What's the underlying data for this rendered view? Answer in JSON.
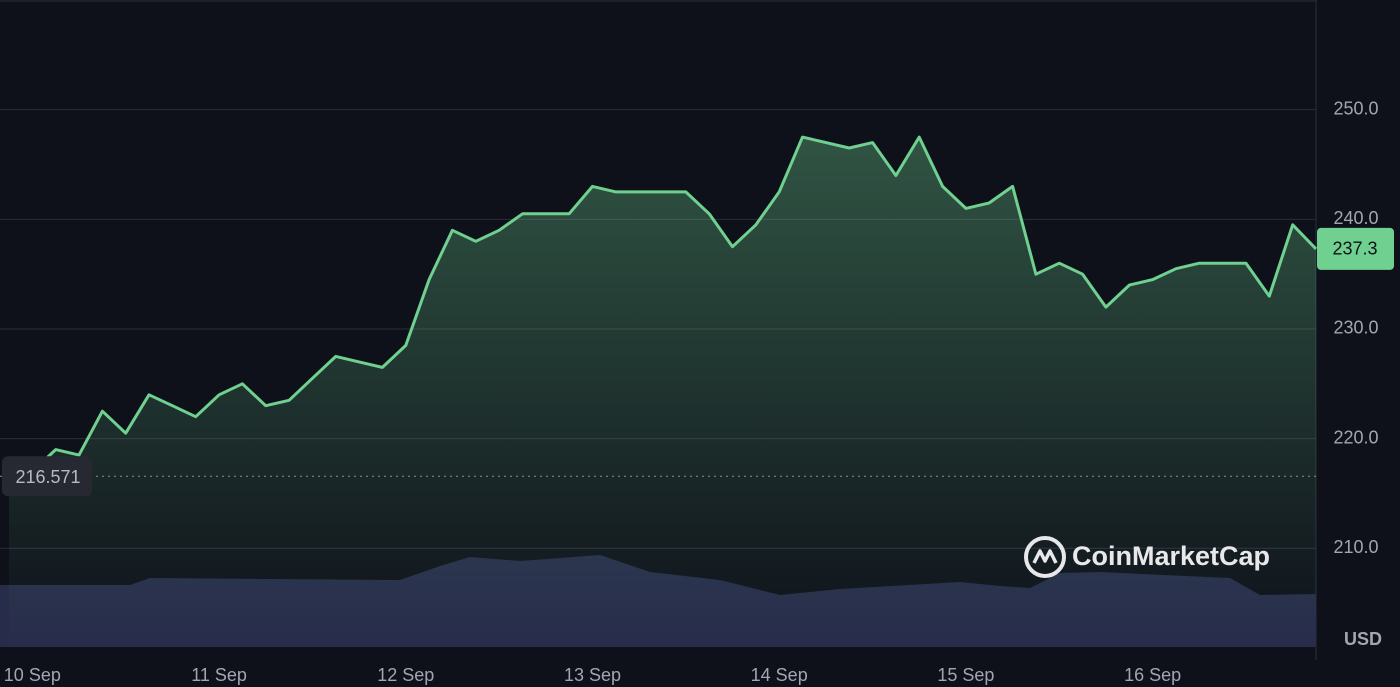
{
  "chart_data": {
    "type": "line",
    "categories": [
      null,
      "10 Sep",
      null,
      null,
      null,
      null,
      null,
      null,
      null,
      "11 Sep",
      null,
      null,
      null,
      null,
      null,
      null,
      null,
      "12 Sep",
      null,
      null,
      null,
      null,
      null,
      null,
      null,
      "13 Sep",
      null,
      null,
      null,
      null,
      null,
      null,
      null,
      "14 Sep",
      null,
      null,
      null,
      null,
      null,
      null,
      null,
      "15 Sep",
      null,
      null,
      null,
      null,
      null,
      null,
      null,
      "16 Sep",
      null,
      null,
      null,
      null,
      null,
      null,
      null
    ],
    "values": [
      216.6,
      217.0,
      219.0,
      218.5,
      222.5,
      220.5,
      224.0,
      223.0,
      222.0,
      224.0,
      225.0,
      223.0,
      223.5,
      225.5,
      227.5,
      227.0,
      226.5,
      228.5,
      234.5,
      239.0,
      238.0,
      239.0,
      240.5,
      240.5,
      240.5,
      243.0,
      242.5,
      242.5,
      242.5,
      242.5,
      240.5,
      237.5,
      239.5,
      242.5,
      247.5,
      247.0,
      246.5,
      247.0,
      244.0,
      247.5,
      243.0,
      241.0,
      241.5,
      243.0,
      235.0,
      236.0,
      235.0,
      232.0,
      234.0,
      234.5,
      235.5,
      236.0,
      236.0,
      236.0,
      233.0,
      239.5,
      237.3
    ],
    "color": "#6fd08f",
    "ylim": [
      201,
      260
    ],
    "yticks": [
      {
        "value": 210,
        "label": "210.0"
      },
      {
        "value": 220,
        "label": "220.0"
      },
      {
        "value": 230,
        "label": "230.0"
      },
      {
        "value": 240,
        "label": "240.0"
      },
      {
        "value": 250,
        "label": "250.0"
      }
    ],
    "grid": true,
    "open_price": 216.571,
    "current_price": 237.3,
    "currency": "USD",
    "watermark": "CoinMarketCap"
  }
}
